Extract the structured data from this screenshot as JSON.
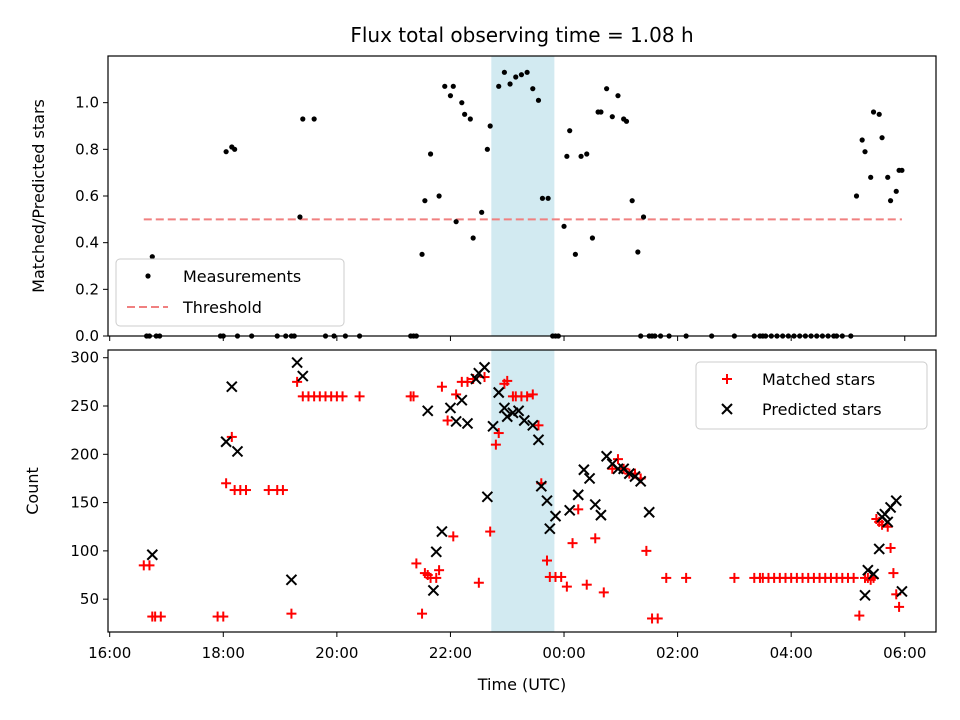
{
  "figure": {
    "title": "Flux total observing time = 1.08 h"
  },
  "colors": {
    "measurement": "#000000",
    "threshold": "#f08080",
    "matched": "#ff0000",
    "predicted": "#000000",
    "highlight": "#add8e6"
  },
  "chart_data": [
    {
      "type": "scatter",
      "ylabel": "Matched/Predicted stars",
      "xlabel": "",
      "xlim": [
        16.6,
        30.55
      ],
      "ylim": [
        0,
        1.2
      ],
      "x_ticks": [
        16,
        18,
        20,
        22,
        24,
        26,
        28,
        30
      ],
      "y_ticks": [
        0.0,
        0.2,
        0.4,
        0.6,
        0.8,
        1.0
      ],
      "y_tick_labels": [
        "0.0",
        "0.2",
        "0.4",
        "0.6",
        "0.8",
        "1.0"
      ],
      "highlight_span": [
        22.72,
        23.83
      ],
      "grid": false,
      "legend_position": "lower-left",
      "legend": [
        "Measurements",
        "Threshold"
      ],
      "threshold": {
        "y": 0.5,
        "x": [
          16.6,
          29.95
        ]
      },
      "series": [
        {
          "name": "Measurements",
          "x": [
            16.65,
            16.7,
            16.75,
            16.82,
            16.88,
            17.95,
            18.0,
            18.05,
            18.15,
            18.2,
            18.25,
            18.5,
            18.95,
            19.1,
            19.2,
            19.25,
            19.35,
            19.4,
            19.6,
            19.8,
            19.95,
            20.15,
            20.4,
            21.3,
            21.35,
            21.4,
            21.5,
            21.55,
            21.65,
            21.8,
            21.9,
            22.0,
            22.05,
            22.1,
            22.2,
            22.25,
            22.35,
            22.4,
            22.55,
            22.65,
            22.7,
            22.85,
            22.95,
            23.05,
            23.15,
            23.25,
            23.35,
            23.45,
            23.55,
            23.62,
            23.72,
            23.8,
            23.85,
            23.9,
            24.0,
            24.05,
            24.1,
            24.2,
            24.3,
            24.4,
            24.5,
            24.6,
            24.65,
            24.75,
            24.85,
            24.95,
            25.05,
            25.1,
            25.2,
            25.3,
            25.35,
            25.4,
            25.5,
            25.55,
            25.6,
            25.7,
            25.85,
            26.15,
            26.6,
            27.0,
            27.35,
            27.45,
            27.5,
            27.55,
            27.65,
            27.75,
            27.85,
            27.95,
            28.05,
            28.15,
            28.25,
            28.35,
            28.45,
            28.55,
            28.65,
            28.75,
            28.8,
            28.9,
            29.05,
            29.15,
            29.25,
            29.3,
            29.4,
            29.45,
            29.55,
            29.6,
            29.7,
            29.75,
            29.85,
            29.9,
            29.95
          ],
          "y": [
            0,
            0,
            0.34,
            0,
            0,
            0,
            0,
            0.79,
            0.81,
            0.8,
            0,
            0,
            0,
            0,
            0,
            0,
            0.51,
            0.93,
            0.93,
            0,
            0,
            0,
            0,
            0,
            0,
            0,
            0.35,
            0.58,
            0.78,
            0.6,
            1.07,
            1.03,
            1.07,
            0.49,
            1.0,
            0.95,
            0.93,
            0.42,
            0.53,
            0.8,
            0.9,
            1.07,
            1.13,
            1.08,
            1.11,
            1.12,
            1.13,
            1.06,
            1.01,
            0.59,
            0.59,
            0,
            0,
            0,
            0.47,
            0.77,
            0.88,
            0.35,
            0.77,
            0.78,
            0.42,
            0.96,
            0.96,
            1.06,
            0.94,
            1.03,
            0.93,
            0.92,
            0.58,
            0.36,
            0,
            0.51,
            0,
            0,
            0,
            0,
            0,
            0,
            0,
            0,
            0,
            0,
            0,
            0,
            0,
            0,
            0,
            0,
            0,
            0,
            0,
            0,
            0,
            0,
            0,
            0,
            0,
            0,
            0,
            0.6,
            0.84,
            0.79,
            0.68,
            0.96,
            0.95,
            0.85,
            0.68,
            0.58,
            0.62,
            0.71,
            0.71
          ]
        }
      ]
    },
    {
      "type": "scatter",
      "ylabel": "Count",
      "xlabel": "Time (UTC)",
      "xlim": [
        15.97,
        30.55
      ],
      "ylim": [
        16,
        308
      ],
      "x_ticks": [
        16,
        18,
        20,
        22,
        24,
        26,
        28,
        30
      ],
      "x_tick_labels": [
        "16:00",
        "18:00",
        "20:00",
        "22:00",
        "00:00",
        "02:00",
        "04:00",
        "06:00"
      ],
      "y_ticks": [
        50,
        100,
        150,
        200,
        250,
        300
      ],
      "highlight_span": [
        22.72,
        23.83
      ],
      "grid": false,
      "legend_position": "upper-right",
      "legend": [
        "Matched stars",
        "Predicted stars"
      ],
      "series": [
        {
          "name": "Matched stars",
          "x": [
            16.6,
            16.7,
            16.75,
            16.8,
            16.9,
            17.9,
            18.0,
            18.05,
            18.15,
            18.2,
            18.3,
            18.4,
            18.8,
            18.95,
            19.05,
            19.2,
            19.3,
            19.4,
            19.5,
            19.6,
            19.7,
            19.8,
            19.9,
            20.0,
            20.1,
            20.4,
            21.3,
            21.35,
            21.4,
            21.5,
            21.55,
            21.6,
            21.65,
            21.75,
            21.8,
            21.85,
            21.95,
            22.05,
            22.1,
            22.2,
            22.3,
            22.4,
            22.5,
            22.6,
            22.7,
            22.8,
            22.85,
            22.95,
            23.0,
            23.1,
            23.15,
            23.25,
            23.35,
            23.45,
            23.55,
            23.6,
            23.7,
            23.75,
            23.85,
            23.95,
            24.05,
            24.15,
            24.25,
            24.4,
            24.55,
            24.7,
            24.85,
            24.95,
            25.05,
            25.15,
            25.25,
            25.35,
            25.45,
            25.55,
            25.65,
            25.8,
            26.15,
            27.0,
            27.35,
            27.45,
            27.5,
            27.6,
            27.7,
            27.8,
            27.9,
            28.0,
            28.1,
            28.2,
            28.3,
            28.4,
            28.5,
            28.6,
            28.7,
            28.8,
            28.9,
            29.0,
            29.1,
            29.2,
            29.3,
            29.35,
            29.4,
            29.45,
            29.5,
            29.55,
            29.6,
            29.7,
            29.75,
            29.8,
            29.85,
            29.9
          ],
          "y": [
            85,
            85,
            32,
            32,
            32,
            32,
            32,
            170,
            218,
            163,
            163,
            163,
            163,
            163,
            163,
            35,
            275,
            260,
            260,
            260,
            260,
            260,
            260,
            260,
            260,
            260,
            260,
            260,
            87,
            35,
            77,
            75,
            72,
            72,
            80,
            270,
            235,
            115,
            262,
            275,
            275,
            278,
            67,
            280,
            120,
            210,
            222,
            273,
            276,
            260,
            260,
            260,
            260,
            262,
            230,
            170,
            90,
            73,
            73,
            73,
            63,
            108,
            143,
            65,
            113,
            57,
            185,
            195,
            185,
            180,
            180,
            175,
            100,
            30,
            30,
            72,
            72,
            72,
            72,
            72,
            72,
            72,
            72,
            72,
            72,
            72,
            72,
            72,
            72,
            72,
            72,
            72,
            72,
            72,
            72,
            72,
            72,
            33,
            72,
            72,
            70,
            72,
            133,
            130,
            127,
            125,
            103,
            77,
            55,
            42
          ]
        },
        {
          "name": "Predicted stars",
          "x": [
            16.75,
            18.05,
            18.15,
            18.25,
            19.2,
            19.3,
            19.4,
            21.6,
            21.7,
            21.75,
            21.85,
            22.0,
            22.1,
            22.2,
            22.3,
            22.45,
            22.5,
            22.6,
            22.65,
            22.75,
            22.85,
            22.95,
            23.0,
            23.1,
            23.2,
            23.3,
            23.45,
            23.55,
            23.6,
            23.7,
            23.75,
            23.85,
            24.1,
            24.25,
            24.35,
            24.45,
            24.55,
            24.65,
            24.75,
            24.85,
            24.95,
            25.05,
            25.15,
            25.25,
            25.35,
            25.5,
            29.3,
            29.35,
            29.45,
            29.55,
            29.6,
            29.65,
            29.7,
            29.75,
            29.85,
            29.95
          ],
          "y": [
            96,
            213,
            270,
            203,
            70,
            295,
            281,
            245,
            59,
            99,
            120,
            248,
            234,
            256,
            232,
            278,
            284,
            290,
            156,
            229,
            264,
            248,
            239,
            243,
            245,
            235,
            230,
            215,
            167,
            152,
            123,
            136,
            142,
            158,
            184,
            175,
            148,
            137,
            198,
            190,
            185,
            185,
            180,
            177,
            172,
            140,
            54,
            80,
            76,
            102,
            135,
            138,
            130,
            145,
            152,
            58
          ]
        }
      ]
    }
  ]
}
